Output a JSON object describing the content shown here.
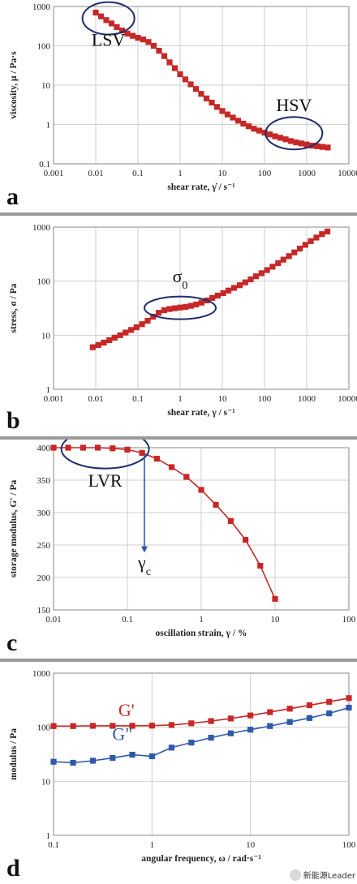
{
  "chart_data": [
    {
      "id": "a",
      "type": "scatter",
      "panel_letter": "a",
      "xlabel": "shear rate, γ̇ / s⁻¹",
      "ylabel": "viscosity, μ / Pa·s",
      "xscale": "log",
      "yscale": "log",
      "xlim": [
        0.001,
        10000
      ],
      "ylim": [
        0.1,
        1000
      ],
      "xticks": [
        "0.001",
        "0.01",
        "0.1",
        "1",
        "10",
        "100",
        "1000",
        "10000"
      ],
      "yticks": [
        "0.1",
        "1",
        "10",
        "100",
        "1000"
      ],
      "grid": true,
      "series": [
        {
          "color": "#c62828",
          "marker": "square",
          "line": true,
          "x": [
            0.01,
            0.0133,
            0.0178,
            0.0237,
            0.0316,
            0.0422,
            0.0562,
            0.075,
            0.1,
            0.133,
            0.178,
            0.237,
            0.316,
            0.422,
            0.562,
            0.75,
            1,
            1.33,
            1.78,
            2.37,
            3.16,
            4.22,
            5.62,
            7.5,
            10,
            13.3,
            17.8,
            23.7,
            31.6,
            42.2,
            56.2,
            75,
            100,
            133,
            178,
            237,
            316,
            422,
            562,
            750,
            1000,
            1330,
            1780,
            2370,
            3160
          ],
          "y": [
            700,
            560,
            450,
            370,
            300,
            245,
            205,
            180,
            160,
            145,
            125,
            100,
            75,
            55,
            38,
            27,
            19,
            14,
            10.5,
            8,
            6,
            4.6,
            3.6,
            2.8,
            2.2,
            1.8,
            1.5,
            1.25,
            1.05,
            0.9,
            0.78,
            0.7,
            0.62,
            0.56,
            0.5,
            0.46,
            0.42,
            0.38,
            0.35,
            0.33,
            0.31,
            0.29,
            0.28,
            0.27,
            0.26
          ]
        }
      ],
      "annotations": [
        {
          "text": "LSV",
          "x": 0.02,
          "y": 100,
          "ellipse_center": [
            0.02,
            500
          ]
        },
        {
          "text": "HSV",
          "x": 500,
          "y": 2.2,
          "ellipse_center": [
            500,
            0.6
          ]
        }
      ]
    },
    {
      "id": "b",
      "type": "scatter",
      "panel_letter": "b",
      "xlabel": "shear rate, γ / s⁻¹",
      "ylabel": "stress, σ / Pa",
      "xscale": "log",
      "yscale": "log",
      "xlim": [
        0.001,
        10000
      ],
      "ylim": [
        1,
        1000
      ],
      "xticks": [
        "0.001",
        "0.01",
        "0.1",
        "1",
        "10",
        "100",
        "1000",
        "10000"
      ],
      "yticks": [
        "1",
        "10",
        "100",
        "1000"
      ],
      "grid": true,
      "series": [
        {
          "color": "#c62828",
          "marker": "square",
          "line": true,
          "x": [
            0.0085,
            0.0115,
            0.0155,
            0.021,
            0.028,
            0.038,
            0.051,
            0.069,
            0.093,
            0.125,
            0.17,
            0.23,
            0.31,
            0.42,
            0.56,
            0.75,
            1,
            1.35,
            1.8,
            2.4,
            3.2,
            4.3,
            5.8,
            7.8,
            10.5,
            14,
            19,
            26,
            35,
            47,
            63,
            85,
            115,
            155,
            210,
            280,
            380,
            510,
            690,
            930,
            1250,
            1700,
            2300,
            3100
          ],
          "y": [
            6,
            6.6,
            7.3,
            8.1,
            9,
            10,
            11.2,
            12.5,
            14,
            16,
            18.5,
            22,
            26,
            29,
            30.5,
            31.5,
            32.5,
            33.5,
            35,
            37,
            40,
            44,
            49,
            54,
            60,
            67,
            75,
            84,
            95,
            108,
            123,
            140,
            160,
            185,
            215,
            250,
            290,
            340,
            400,
            470,
            550,
            640,
            740,
            830
          ]
        }
      ],
      "annotations": [
        {
          "text": "σ",
          "subscript": "0",
          "x": 1,
          "y": 95,
          "ellipse_center": [
            1,
            32
          ]
        }
      ]
    },
    {
      "id": "c",
      "type": "line",
      "panel_letter": "c",
      "xlabel": "oscillation strain, γ / %",
      "ylabel": "storage modulus, G' / Pa",
      "xscale": "log",
      "yscale": "linear",
      "xlim": [
        0.01,
        100
      ],
      "ylim": [
        150,
        400
      ],
      "xticks": [
        "0.01",
        "0.1",
        "1",
        "10",
        "100"
      ],
      "yticks": [
        "150",
        "200",
        "250",
        "300",
        "350",
        "400"
      ],
      "grid": true,
      "series": [
        {
          "color": "#c62828",
          "marker": "square",
          "line": true,
          "x": [
            0.01,
            0.0158,
            0.0251,
            0.0398,
            0.0631,
            0.1,
            0.158,
            0.251,
            0.398,
            0.631,
            1,
            1.58,
            2.51,
            3.98,
            6.31,
            10
          ],
          "y": [
            400,
            400,
            400,
            400,
            399,
            397,
            392,
            383,
            370,
            355,
            335,
            312,
            287,
            258,
            218,
            167
          ]
        }
      ],
      "annotations": [
        {
          "text": "LVR",
          "x": 0.05,
          "y": 340,
          "ellipse_center": [
            0.05,
            398
          ]
        },
        {
          "text": "γ",
          "subscript": "c",
          "x": 0.17,
          "y": 214,
          "arrow_x": 0.17,
          "arrow_from_y": 390,
          "arrow_to_y": 238
        }
      ]
    },
    {
      "id": "d",
      "type": "line",
      "panel_letter": "d",
      "xlabel": "angular frequency, ω / rad·s⁻¹",
      "ylabel": "modulus / Pa",
      "xscale": "log",
      "yscale": "log",
      "xlim": [
        0.1,
        100
      ],
      "ylim": [
        1,
        1000
      ],
      "xticks": [
        "0.1",
        "1",
        "10",
        "100"
      ],
      "yticks": [
        "1",
        "10",
        "100",
        "1000"
      ],
      "grid": true,
      "series": [
        {
          "name": "G'",
          "color": "#c62828",
          "marker": "square",
          "line": true,
          "x": [
            0.1,
            0.158,
            0.251,
            0.398,
            0.631,
            1,
            1.58,
            2.51,
            3.98,
            6.31,
            10,
            15.8,
            25.1,
            39.8,
            63.1,
            100
          ],
          "y": [
            105,
            105,
            106,
            106,
            106,
            107,
            110,
            118,
            130,
            145,
            165,
            190,
            220,
            255,
            295,
            345
          ]
        },
        {
          "name": "G''",
          "color": "#2f5aa8",
          "marker": "square",
          "line": true,
          "x": [
            0.1,
            0.158,
            0.251,
            0.398,
            0.631,
            1,
            1.58,
            2.51,
            3.98,
            6.31,
            10,
            15.8,
            25.1,
            39.8,
            63.1,
            100
          ],
          "y": [
            23,
            22,
            24,
            27,
            31,
            29,
            42,
            52,
            64,
            77,
            90,
            105,
            125,
            148,
            180,
            230
          ]
        }
      ],
      "annotations": [
        {
          "text": "G'",
          "x": 0.55,
          "y": 160,
          "color": "#c62828"
        },
        {
          "text": "G\"",
          "x": 0.5,
          "y": 58,
          "color": "#2f5aa8"
        }
      ]
    }
  ],
  "watermark": {
    "text": "新能源Leader"
  }
}
